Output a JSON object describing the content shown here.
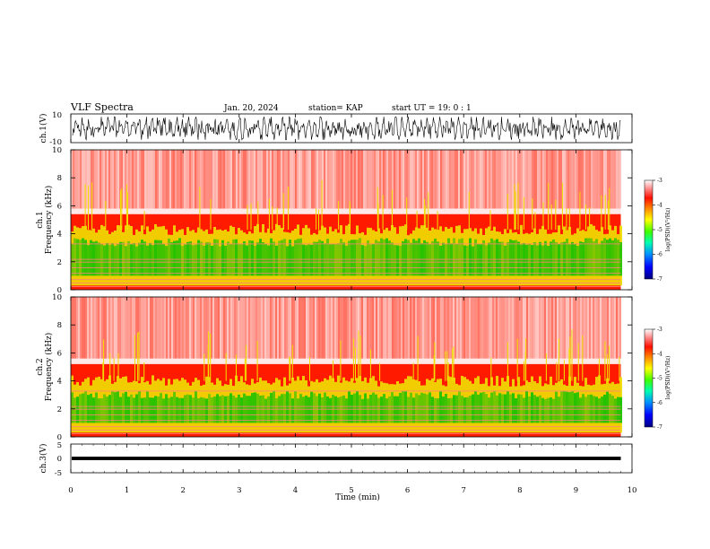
{
  "header": {
    "title": "VLF Spectra",
    "date": "Jan. 20, 2024",
    "station": "station= KAP",
    "start": "start UT =   19: 0  : 1"
  },
  "colors": {
    "spec_low": "#00c000",
    "spec_mid": "#f0e000",
    "spec_high": "#ff1a00",
    "spec_bg": "#ffe8e8",
    "trace": "#000000",
    "colorbar": [
      "#000080",
      "#0000ff",
      "#0080ff",
      "#00e0e0",
      "#00ff40",
      "#80ff00",
      "#ffff00",
      "#ffa000",
      "#ff2000",
      "#ff8080",
      "#ffffff"
    ]
  },
  "chart_data": [
    {
      "type": "line",
      "name": "waveform-ch1",
      "ylabel": "ch.1(V)",
      "ylim": [
        -10,
        10
      ],
      "yticks": [
        "10",
        "-10"
      ],
      "description_values": {
        "amplitude_range": [
          -8,
          8
        ]
      }
    },
    {
      "type": "heatmap",
      "name": "spectrogram-ch1",
      "ylabel": "ch.1\nFrequency (kHz)",
      "ylabel_line1": "ch.1",
      "ylabel_line2": "Frequency (kHz)",
      "ylim": [
        0,
        10
      ],
      "yticks": [
        "0",
        "2",
        "4",
        "6",
        "8",
        "10"
      ],
      "band_top_khz": {
        "green": 3.4,
        "yellow": 4.3,
        "red": 5.4
      },
      "colorbar": {
        "label": "log(PSD)(V²/Hz)",
        "ticks": [
          "-3",
          "-4",
          "-5",
          "-6",
          "-7"
        ],
        "range": [
          -7,
          -3
        ]
      }
    },
    {
      "type": "heatmap",
      "name": "spectrogram-ch2",
      "ylabel": "ch.2\nFrequency (kHz)",
      "ylabel_line1": "ch.2",
      "ylabel_line2": "Frequency (kHz)",
      "ylim": [
        0,
        10
      ],
      "yticks": [
        "0",
        "2",
        "4",
        "6",
        "8",
        "10"
      ],
      "band_top_khz": {
        "green": 3.0,
        "yellow": 4.0,
        "red": 5.2
      },
      "colorbar": {
        "label": "log(PSD)(V²/Hz)",
        "ticks": [
          "-3",
          "-4",
          "-5",
          "-6",
          "-7"
        ],
        "range": [
          -7,
          -3
        ]
      }
    },
    {
      "type": "line",
      "name": "waveform-ch3",
      "ylabel": "ch.3(V)",
      "ylim": [
        -5,
        5
      ],
      "yticks": [
        "5",
        "0",
        "-5"
      ],
      "description_values": {
        "amplitude_range": [
          -0.6,
          0.6
        ]
      }
    }
  ],
  "xaxis": {
    "label": "Time (min)",
    "xlim": [
      0,
      10
    ],
    "ticks": [
      "0",
      "1",
      "2",
      "3",
      "4",
      "5",
      "6",
      "7",
      "8",
      "9",
      "10"
    ],
    "data_end_min": 9.8
  }
}
